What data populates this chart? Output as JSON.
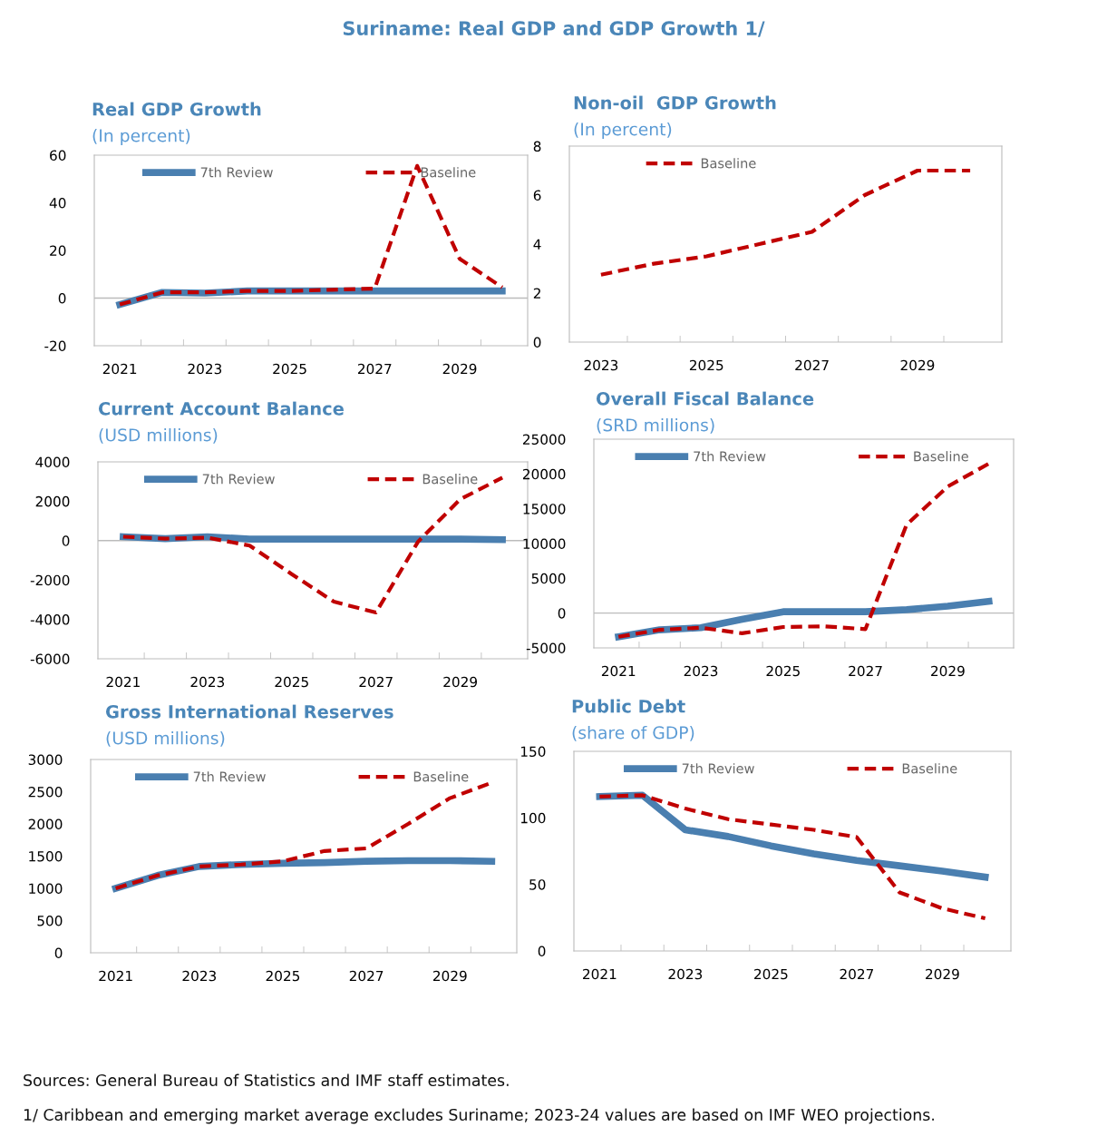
{
  "chart_data": [
    {
      "type": "other",
      "title": "Suriname: Real GDP and GDP Growth 1/",
      "annotations": [
        "Sources: General Bureau of Statistics and IMF staff estimates.",
        "1/ Caribbean and emerging market average excludes Suriname; 2023-24 values are based on IMF WEO projections."
      ]
    },
    {
      "type": "line",
      "title": "Real GDP Growth",
      "subtitle": "(In percent)",
      "categories": [
        "2021",
        null,
        "2023",
        null,
        "2025",
        null,
        "2027",
        null,
        "2029",
        null
      ],
      "ylim": [
        -20,
        60
      ],
      "yticks": [
        -20,
        0,
        20,
        40,
        60
      ],
      "legend": "top",
      "series": [
        {
          "name": "7th Review",
          "color": "#4a7fb0",
          "line_style": "solid",
          "values": [
            -2.7,
            2.4,
            2.1,
            3.0,
            3.0,
            3.0,
            3.0,
            3.0,
            3.0,
            3.0
          ]
        },
        {
          "name": "Baseline",
          "color": "#c00000",
          "line_style": "dashed",
          "values": [
            -2.7,
            2.4,
            2.4,
            3.0,
            3.0,
            3.5,
            4.0,
            55.5,
            16.5,
            4.5
          ]
        }
      ]
    },
    {
      "type": "line",
      "title": "Non-oil  GDP Growth",
      "subtitle": "(In percent)",
      "categories": [
        "2023",
        null,
        "2025",
        null,
        "2027",
        null,
        "2029",
        null
      ],
      "ylim": [
        0,
        8
      ],
      "yticks": [
        0,
        2,
        4,
        6,
        8
      ],
      "legend": "top left",
      "series": [
        {
          "name": "Baseline",
          "color": "#c00000",
          "line_style": "dashed",
          "values": [
            2.75,
            3.2,
            3.5,
            4.0,
            4.5,
            6.0,
            7.0,
            7.0
          ]
        }
      ]
    },
    {
      "type": "line",
      "title": "Current Account Balance",
      "subtitle": "(USD millions)",
      "categories": [
        "2021",
        null,
        "2023",
        null,
        "2025",
        null,
        "2027",
        null,
        "2029",
        null
      ],
      "ylim": [
        -6000,
        4000
      ],
      "yticks": [
        -6000,
        -4000,
        -2000,
        0,
        2000,
        4000
      ],
      "legend": "top",
      "series": [
        {
          "name": "7th Review",
          "color": "#4a7fb0",
          "line_style": "solid",
          "values": [
            200,
            100,
            200,
            80,
            80,
            80,
            80,
            80,
            80,
            50
          ]
        },
        {
          "name": "Baseline",
          "color": "#c00000",
          "line_style": "dashed",
          "values": [
            200,
            100,
            150,
            -250,
            -1700,
            -3100,
            -3650,
            -50,
            2100,
            3200
          ]
        }
      ]
    },
    {
      "type": "line",
      "title": "Overall Fiscal Balance",
      "subtitle": "(SRD millions)",
      "categories": [
        "2021",
        null,
        "2023",
        null,
        "2025",
        null,
        "2027",
        null,
        "2029",
        null
      ],
      "ylim": [
        -5000,
        25000
      ],
      "yticks": [
        -5000,
        0,
        5000,
        10000,
        15000,
        20000,
        25000
      ],
      "legend": "top",
      "series": [
        {
          "name": "7th Review",
          "color": "#4a7fb0",
          "line_style": "solid",
          "values": [
            -3400,
            -2400,
            -2100,
            -900,
            200,
            200,
            200,
            500,
            1000,
            1700
          ]
        },
        {
          "name": "Baseline",
          "color": "#c00000",
          "line_style": "dashed",
          "values": [
            -3400,
            -2400,
            -2100,
            -2900,
            -2000,
            -1900,
            -2300,
            12700,
            18200,
            21500
          ]
        }
      ]
    },
    {
      "type": "line",
      "title": "Gross International Reserves",
      "subtitle": "(USD millions)",
      "categories": [
        "2021",
        null,
        "2023",
        null,
        "2025",
        null,
        "2027",
        null,
        "2029",
        null
      ],
      "ylim": [
        0,
        3000
      ],
      "yticks": [
        0,
        500,
        1000,
        1500,
        2000,
        2500,
        3000
      ],
      "legend": "top",
      "series": [
        {
          "name": "7th Review",
          "color": "#4a7fb0",
          "line_style": "solid",
          "values": [
            1000,
            1200,
            1340,
            1370,
            1390,
            1400,
            1420,
            1430,
            1430,
            1420
          ]
        },
        {
          "name": "Baseline",
          "color": "#c00000",
          "line_style": "dashed",
          "values": [
            1000,
            1200,
            1340,
            1370,
            1420,
            1580,
            1620,
            2000,
            2400,
            2640
          ]
        }
      ]
    },
    {
      "type": "line",
      "title": "Public Debt",
      "subtitle": "(share of GDP)",
      "categories": [
        "2021",
        null,
        "2023",
        null,
        "2025",
        null,
        "2027",
        null,
        "2029",
        null
      ],
      "ylim": [
        0,
        150
      ],
      "yticks": [
        0,
        50,
        100,
        150
      ],
      "legend": "top",
      "series": [
        {
          "name": "7th Review",
          "color": "#4a7fb0",
          "line_style": "solid",
          "values": [
            116,
            117,
            91,
            86,
            79,
            73,
            68,
            64,
            60,
            55.5
          ]
        },
        {
          "name": "Baseline",
          "color": "#c00000",
          "line_style": "dashed",
          "values": [
            116,
            117,
            107,
            99,
            95,
            91,
            85.5,
            44,
            32,
            24.5
          ]
        }
      ]
    }
  ]
}
